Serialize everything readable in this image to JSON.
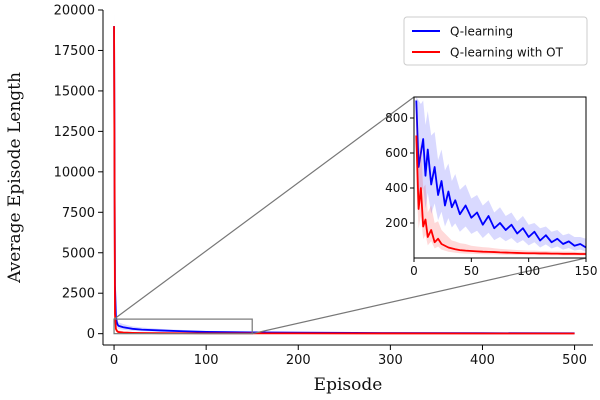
{
  "chart_data": [
    {
      "type": "line",
      "panel": "main",
      "xlabel": "Episode",
      "ylabel": "Average Episode Length",
      "xlim": [
        -12,
        520
      ],
      "ylim": [
        -700,
        20000
      ],
      "xticks": [
        0,
        100,
        200,
        300,
        400,
        500
      ],
      "yticks": [
        0,
        2500,
        5000,
        7500,
        10000,
        12500,
        15000,
        17500,
        20000
      ],
      "grid": false,
      "legend": "top-right",
      "series": [
        {
          "name": "Q-learning",
          "color": "#0000ff",
          "x": [
            0,
            1,
            2,
            3,
            4,
            5,
            10,
            20,
            30,
            50,
            75,
            100,
            150,
            200,
            300,
            400,
            500
          ],
          "y": [
            19000,
            3000,
            1100,
            700,
            550,
            480,
            400,
            300,
            250,
            200,
            150,
            110,
            80,
            60,
            40,
            30,
            25
          ],
          "band_upper": [
            19900,
            4000,
            1700,
            1000,
            800,
            700,
            600,
            450,
            380,
            300,
            230,
            170,
            120,
            90,
            60,
            45,
            35
          ]
        },
        {
          "name": "Q-learning with OT",
          "color": "#ff0000",
          "x": [
            0,
            1,
            2,
            3,
            4,
            5,
            10,
            20,
            30,
            50,
            75,
            100,
            150,
            200,
            300,
            400,
            500
          ],
          "y": [
            19000,
            1200,
            300,
            180,
            120,
            100,
            70,
            50,
            40,
            30,
            25,
            20,
            18,
            16,
            14,
            12,
            12
          ],
          "band_upper": [
            19500,
            1900,
            600,
            350,
            250,
            200,
            140,
            100,
            70,
            50,
            40,
            30,
            25,
            22,
            18,
            16,
            15
          ]
        }
      ]
    },
    {
      "type": "line",
      "panel": "inset",
      "xlim": [
        0,
        150
      ],
      "ylim": [
        0,
        920
      ],
      "xticks": [
        0,
        50,
        100,
        150
      ],
      "yticks": [
        200,
        400,
        600,
        800
      ],
      "series": [
        {
          "name": "Q-learning",
          "color": "#0000ff",
          "x": [
            2,
            4,
            6,
            8,
            10,
            12,
            15,
            18,
            21,
            24,
            27,
            30,
            33,
            36,
            40,
            45,
            50,
            55,
            60,
            65,
            70,
            75,
            80,
            85,
            90,
            95,
            100,
            105,
            110,
            115,
            120,
            125,
            130,
            135,
            140,
            145,
            150
          ],
          "y": [
            900,
            520,
            600,
            680,
            470,
            620,
            420,
            520,
            360,
            440,
            300,
            380,
            290,
            330,
            250,
            300,
            230,
            260,
            190,
            240,
            170,
            200,
            160,
            190,
            140,
            170,
            120,
            150,
            100,
            130,
            90,
            110,
            80,
            95,
            70,
            80,
            60
          ],
          "band_upper": [
            920,
            900,
            880,
            900,
            760,
            840,
            700,
            720,
            560,
            620,
            500,
            540,
            440,
            480,
            390,
            420,
            340,
            360,
            300,
            330,
            260,
            290,
            240,
            260,
            210,
            240,
            190,
            200,
            170,
            180,
            150,
            160,
            130,
            140,
            120,
            120,
            110
          ]
        },
        {
          "name": "Q-learning with OT",
          "color": "#ff0000",
          "x": [
            2,
            4,
            6,
            8,
            10,
            12,
            15,
            18,
            21,
            24,
            27,
            30,
            33,
            36,
            40,
            45,
            50,
            55,
            60,
            65,
            70,
            75,
            80,
            85,
            90,
            95,
            100,
            105,
            110,
            115,
            120,
            125,
            130,
            135,
            140,
            145,
            150
          ],
          "y": [
            700,
            280,
            400,
            180,
            220,
            120,
            160,
            90,
            110,
            80,
            70,
            60,
            55,
            50,
            45,
            42,
            40,
            38,
            36,
            35,
            34,
            32,
            31,
            30,
            29,
            28,
            27,
            27,
            26,
            26,
            25,
            25,
            24,
            24,
            24,
            23,
            23
          ],
          "band_upper": [
            920,
            600,
            650,
            400,
            420,
            260,
            300,
            200,
            210,
            160,
            140,
            120,
            100,
            95,
            85,
            80,
            70,
            66,
            62,
            60,
            56,
            52,
            50,
            48,
            46,
            44,
            42,
            42,
            40,
            40,
            38,
            38,
            37,
            37,
            36,
            36,
            35
          ]
        }
      ]
    }
  ]
}
